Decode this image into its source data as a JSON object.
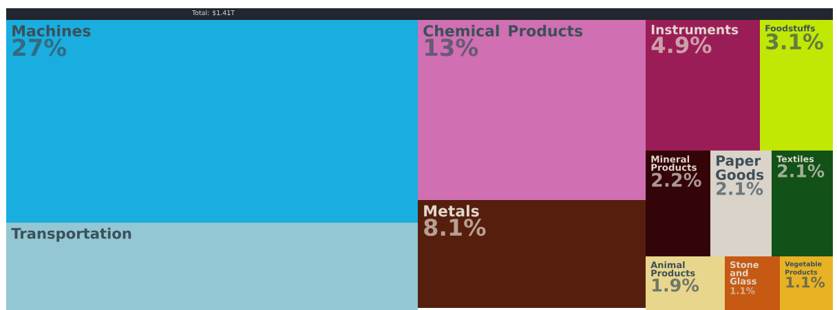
{
  "chart_data": {
    "type": "other",
    "title": "Total: $1.41T",
    "categories": [
      "Machines",
      "Transportation",
      "Chemical Products",
      "Metals",
      "Instruments",
      "Foodstuffs",
      "Mineral Products",
      "Paper Goods",
      "Textiles",
      "Animal Products",
      "Stone and Glass",
      "Vegetable Products"
    ],
    "values": [
      27,
      null,
      13,
      8.1,
      4.9,
      3.1,
      2.2,
      2.1,
      2.1,
      1.9,
      1.1,
      1.1
    ],
    "value_labels": [
      "27%",
      null,
      "13%",
      "8.1%",
      "4.9%",
      "3.1%",
      "2.2%",
      "2.1%",
      "2.1%",
      "1.9%",
      "1.1%",
      "1.1%"
    ],
    "colors": [
      "#1aaee0",
      "#92c7d3",
      "#d06fb2",
      "#561f0d",
      "#9b1d58",
      "#c1e805",
      "#330408",
      "#dad3c9",
      "#125218",
      "#e8d68c",
      "#c65a13",
      "#e8b224"
    ]
  }
}
